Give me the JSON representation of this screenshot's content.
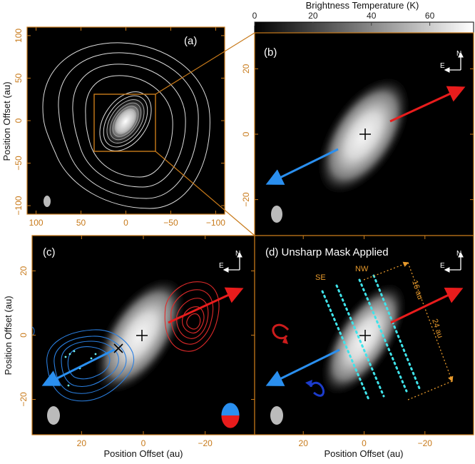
{
  "chart_data": {
    "type": "heatmap",
    "colorbar": {
      "label": "Brightness Temperature (K)",
      "range": [
        0,
        75
      ],
      "ticks": [
        0,
        20,
        40,
        60
      ],
      "colormap": "grayscale"
    },
    "accent_orange": "#c87a1a",
    "panels": [
      {
        "id": "a",
        "label": "(a)",
        "xlim": [
          110,
          -110
        ],
        "ylim": [
          -110,
          110
        ],
        "xticks": [
          100,
          50,
          0,
          -50,
          -100
        ],
        "yticks": [
          100,
          50,
          0,
          -50,
          -100
        ],
        "ylabel": "Position Offset (au)",
        "xlabel": "",
        "contours": "white",
        "zoom_box": {
          "x": [
            -36,
            36
          ],
          "y": [
            -36,
            36
          ]
        }
      },
      {
        "id": "b",
        "label": "(b)",
        "xlim": [
          36,
          -36
        ],
        "ylim": [
          -31,
          31
        ],
        "xticks": [],
        "yticks": [
          20,
          0,
          -20
        ],
        "compass": {
          "north": "N",
          "east": "E"
        },
        "outflow": {
          "blue_color": "#2a8fef",
          "red_color": "#e81c1c"
        }
      },
      {
        "id": "c",
        "label": "(c)",
        "xlim": [
          36,
          -36
        ],
        "ylim": [
          -31,
          31
        ],
        "xticks": [
          20,
          0,
          -20
        ],
        "yticks": [
          20,
          0,
          -20
        ],
        "xlabel": "Position Offset (au)",
        "ylabel": "Position Offset (au)",
        "compass": {
          "north": "N",
          "east": "E"
        },
        "markers": [
          "+",
          "×"
        ]
      },
      {
        "id": "d",
        "label": "(d) Unsharp Mask Applied",
        "xlim": [
          36,
          -36
        ],
        "ylim": [
          -31,
          31
        ],
        "xticks": [
          20,
          0,
          -20
        ],
        "yticks": [],
        "xlabel": "Position Offset (au)",
        "compass": {
          "north": "N",
          "east": "E"
        },
        "annotations": [
          "SE",
          "NW",
          "16 au",
          "24 au"
        ]
      }
    ]
  }
}
